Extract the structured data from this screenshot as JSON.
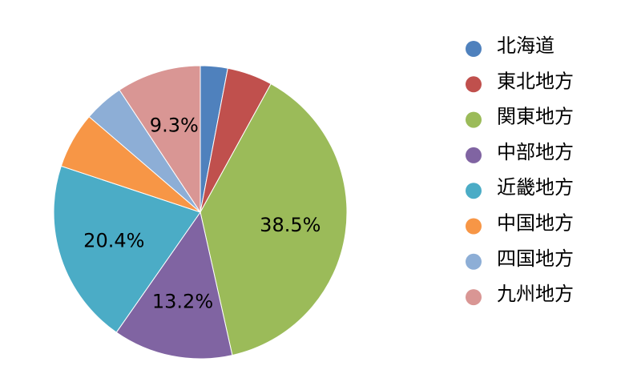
{
  "chart_data": {
    "type": "pie",
    "title": "",
    "legend": "right",
    "series": [
      {
        "name": "北海道",
        "value": 3.0,
        "label": "",
        "color": "#4F81BD"
      },
      {
        "name": "東北地方",
        "value": 5.0,
        "label": "",
        "color": "#C0504D"
      },
      {
        "name": "関東地方",
        "value": 38.5,
        "label": "38.5%",
        "color": "#9BBB59"
      },
      {
        "name": "中部地方",
        "value": 13.2,
        "label": "13.2%",
        "color": "#8064A2"
      },
      {
        "name": "近畿地方",
        "value": 20.4,
        "label": "20.4%",
        "color": "#4BACC6"
      },
      {
        "name": "中国地方",
        "value": 6.2,
        "label": "",
        "color": "#F79646"
      },
      {
        "name": "四国地方",
        "value": 4.4,
        "label": "",
        "color": "#8DAED6"
      },
      {
        "name": "九州地方",
        "value": 9.3,
        "label": "9.3%",
        "color": "#D99694"
      }
    ]
  }
}
